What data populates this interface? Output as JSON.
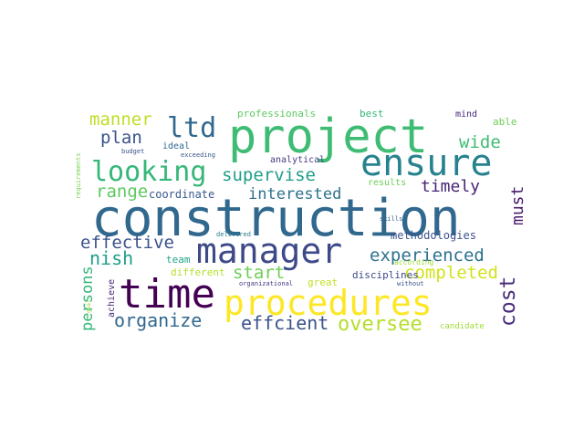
{
  "words": [
    {
      "text": "construction",
      "color": "#31688e"
    },
    {
      "text": "project",
      "color": "#3fbc73"
    },
    {
      "text": "manager",
      "color": "#3e4989"
    },
    {
      "text": "procedures",
      "color": "#fde725"
    },
    {
      "text": "time",
      "color": "#440154"
    },
    {
      "text": "ensure",
      "color": "#26828e"
    },
    {
      "text": "looking",
      "color": "#35b779"
    },
    {
      "text": "ltd",
      "color": "#31688e"
    },
    {
      "text": "supervise",
      "color": "#1f9e89"
    },
    {
      "text": "effective",
      "color": "#3b528b"
    },
    {
      "text": "experienced",
      "color": "#2c728e"
    },
    {
      "text": "completed",
      "color": "#d2e21b"
    },
    {
      "text": "start",
      "color": "#6ece58"
    },
    {
      "text": "cost",
      "color": "#472d7b"
    },
    {
      "text": "oversee",
      "color": "#b5de2b"
    },
    {
      "text": "organize",
      "color": "#31688e"
    },
    {
      "text": "effcient",
      "color": "#3b528b"
    },
    {
      "text": "plan",
      "color": "#3b528b"
    },
    {
      "text": "wide",
      "color": "#3fbc73"
    },
    {
      "text": "manner",
      "color": "#bddf26"
    },
    {
      "text": "range",
      "color": "#5ec962"
    },
    {
      "text": "timely",
      "color": "#482475"
    },
    {
      "text": "interested",
      "color": "#2c728e"
    },
    {
      "text": "must",
      "color": "#481a6c"
    },
    {
      "text": "nish",
      "color": "#1f9e89"
    },
    {
      "text": "persons",
      "color": "#35b779"
    },
    {
      "text": "coordinate",
      "color": "#38588c"
    },
    {
      "text": "methodologies",
      "color": "#3b528b"
    },
    {
      "text": "professionals",
      "color": "#5ec962"
    },
    {
      "text": "best",
      "color": "#35b779"
    },
    {
      "text": "mind",
      "color": "#482878"
    },
    {
      "text": "able",
      "color": "#6ece58"
    },
    {
      "text": "ideal",
      "color": "#31688e"
    },
    {
      "text": "analytical",
      "color": "#443983"
    },
    {
      "text": "results",
      "color": "#6ece58"
    },
    {
      "text": "team",
      "color": "#20a486"
    },
    {
      "text": "disciplines",
      "color": "#3e4989"
    },
    {
      "text": "different",
      "color": "#b5de2b"
    },
    {
      "text": "great",
      "color": "#c2df23"
    },
    {
      "text": "according",
      "color": "#9dd93b"
    },
    {
      "text": "candidate",
      "color": "#a0da39"
    },
    {
      "text": "achieve",
      "color": "#482878"
    },
    {
      "text": "budget",
      "color": "#3b528b"
    },
    {
      "text": "exceeding",
      "color": "#38588c"
    },
    {
      "text": "requirements",
      "color": "#7ad151"
    },
    {
      "text": "delivered",
      "color": "#2a788e"
    },
    {
      "text": "skills",
      "color": "#31688e"
    },
    {
      "text": "organizational",
      "color": "#443983"
    },
    {
      "text": "without",
      "color": "#3b528b"
    },
    {
      "text": "goal",
      "color": "#a0da39"
    }
  ]
}
